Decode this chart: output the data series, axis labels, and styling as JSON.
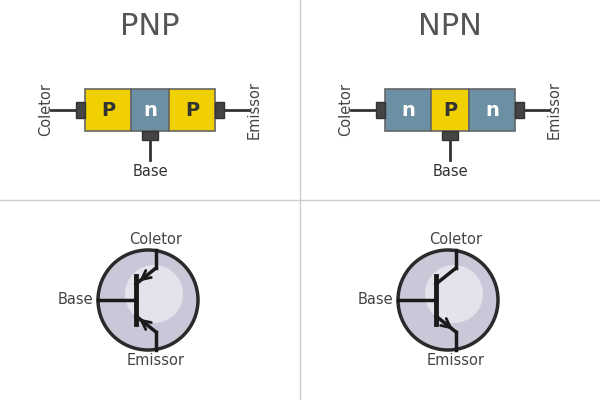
{
  "title_pnp": "PNP",
  "title_npn": "NPN",
  "yellow_color": "#F0D000",
  "gray_color": "#6B8FA3",
  "dark_color": "#333333",
  "bg_color": "#ffffff",
  "circle_fill_outer": "#C8C8D8",
  "circle_fill_inner": "#E8E8F0",
  "label_coletor": "Coletor",
  "label_emissor": "Emissor",
  "label_base": "Base",
  "title_fontsize": 22,
  "label_fontsize": 10.5,
  "segment_fontsize": 14,
  "divider_color": "#cccccc"
}
